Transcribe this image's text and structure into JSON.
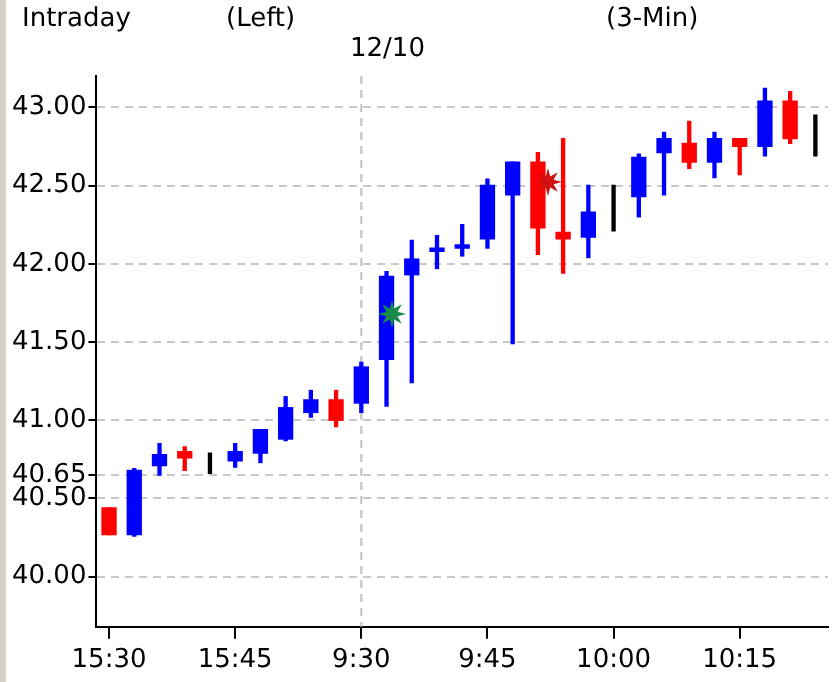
{
  "chart_data": {
    "type": "candlestick",
    "title": "Intraday",
    "subtitle": "12/10",
    "annotations": [
      "(Left)",
      "(3-Min)"
    ],
    "categories": [
      "15:30",
      null,
      null,
      null,
      null,
      "15:45",
      null,
      null,
      null,
      null,
      "9:30",
      null,
      null,
      null,
      null,
      "9:45",
      null,
      null,
      null,
      null,
      "10:00",
      null,
      null,
      null,
      null,
      "10:15",
      null,
      null,
      null
    ],
    "ohlc": [
      [
        40.44,
        40.44,
        40.27,
        40.27
      ],
      [
        40.27,
        40.69,
        40.26,
        40.68
      ],
      [
        40.71,
        40.85,
        40.65,
        40.78
      ],
      [
        40.8,
        40.83,
        40.68,
        40.76
      ],
      [
        40.75,
        40.79,
        40.66,
        40.75
      ],
      [
        40.74,
        40.85,
        40.7,
        40.8
      ],
      [
        40.79,
        40.94,
        40.73,
        40.94
      ],
      [
        40.88,
        41.15,
        40.87,
        41.08
      ],
      [
        41.05,
        41.19,
        41.02,
        41.13
      ],
      [
        41.13,
        41.19,
        40.96,
        41.0
      ],
      [
        41.11,
        41.37,
        41.05,
        41.34
      ],
      [
        41.39,
        41.95,
        41.09,
        41.92
      ],
      [
        41.93,
        42.15,
        41.24,
        42.03
      ],
      [
        42.08,
        42.18,
        41.97,
        42.1
      ],
      [
        42.1,
        42.25,
        42.05,
        42.12
      ],
      [
        42.16,
        42.54,
        42.1,
        42.5
      ],
      [
        42.44,
        42.65,
        41.49,
        42.65
      ],
      [
        42.65,
        42.71,
        42.06,
        42.23
      ],
      [
        42.2,
        42.8,
        41.94,
        42.16
      ],
      [
        42.17,
        42.5,
        42.04,
        42.33
      ],
      [
        42.31,
        42.5,
        42.21,
        42.31
      ],
      [
        42.43,
        42.7,
        42.3,
        42.68
      ],
      [
        42.71,
        42.84,
        42.44,
        42.8
      ],
      [
        42.77,
        42.91,
        42.61,
        42.65
      ],
      [
        42.65,
        42.84,
        42.55,
        42.8
      ],
      [
        42.8,
        42.8,
        42.57,
        42.75
      ],
      [
        42.75,
        43.12,
        42.69,
        43.04
      ],
      [
        43.04,
        43.1,
        42.77,
        42.8
      ],
      [
        42.83,
        42.95,
        42.69,
        42.83
      ]
    ],
    "colors": [
      "#ff0000",
      "#0000ff",
      "#0000ff",
      "#ff0000",
      "#000000",
      "#0000ff",
      "#0000ff",
      "#0000ff",
      "#0000ff",
      "#ff0000",
      "#0000ff",
      "#0000ff",
      "#0000ff",
      "#0000ff",
      "#0000ff",
      "#0000ff",
      "#0000ff",
      "#ff0000",
      "#ff0000",
      "#0000ff",
      "#000000",
      "#0000ff",
      "#0000ff",
      "#ff0000",
      "#0000ff",
      "#ff0000",
      "#0000ff",
      "#ff0000",
      "#000000"
    ],
    "ylim": [
      39.68,
      43.2
    ],
    "yticks": [
      {
        "value": 40,
        "label": "40.00"
      },
      {
        "value": 40.5,
        "label": "40.50"
      },
      {
        "value": 40.65,
        "label": "40.65"
      },
      {
        "value": 41,
        "label": "41.00"
      },
      {
        "value": 41.5,
        "label": "41.50"
      },
      {
        "value": 42,
        "label": "42.00"
      },
      {
        "value": 42.5,
        "label": "42.50"
      },
      {
        "value": 43,
        "label": "43.00"
      }
    ],
    "ref_lines": [
      {
        "axis": "x",
        "value": "9:30",
        "color": "#c0c0c0",
        "line_style": "dashed"
      }
    ],
    "grid": "y",
    "legend": false
  }
}
